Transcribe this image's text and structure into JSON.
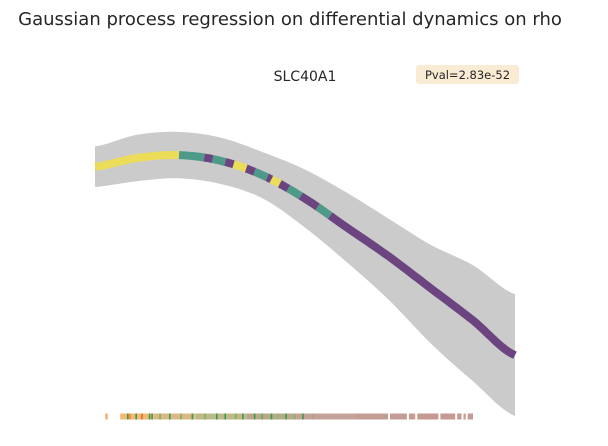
{
  "chart_data": {
    "type": "line",
    "title": "Gaussian process regression on differential dynamics on rho",
    "subtitle": "SLC40A1",
    "annotation": "Pval=2.83e-52",
    "xlabel": "",
    "ylabel": "",
    "grid": false,
    "axes_visible": false,
    "xlim": [
      0,
      1
    ],
    "ylim": [
      0,
      1
    ],
    "fit": {
      "x": [
        0.0,
        0.1,
        0.2,
        0.3,
        0.4,
        0.5,
        0.6,
        0.7,
        0.8,
        0.9,
        1.0
      ],
      "mean": [
        0.77,
        0.8,
        0.81,
        0.79,
        0.74,
        0.66,
        0.56,
        0.46,
        0.35,
        0.24,
        0.12
      ],
      "lower": [
        0.7,
        0.72,
        0.73,
        0.71,
        0.66,
        0.56,
        0.44,
        0.31,
        0.16,
        0.03,
        -0.09
      ],
      "upper": [
        0.84,
        0.88,
        0.89,
        0.87,
        0.82,
        0.76,
        0.68,
        0.59,
        0.5,
        0.43,
        0.33
      ],
      "band_color": "#cbcbcb"
    },
    "line_segments": [
      {
        "from": 0.0,
        "to": 0.2,
        "color": "#ebdd5a"
      },
      {
        "from": 0.2,
        "to": 0.26,
        "color": "#4e9a89"
      },
      {
        "from": 0.26,
        "to": 0.28,
        "color": "#6c4480"
      },
      {
        "from": 0.28,
        "to": 0.31,
        "color": "#4e9a89"
      },
      {
        "from": 0.31,
        "to": 0.33,
        "color": "#6c4480"
      },
      {
        "from": 0.33,
        "to": 0.36,
        "color": "#ebdd5a"
      },
      {
        "from": 0.36,
        "to": 0.38,
        "color": "#6c4480"
      },
      {
        "from": 0.38,
        "to": 0.41,
        "color": "#4e9a89"
      },
      {
        "from": 0.41,
        "to": 0.42,
        "color": "#6c4480"
      },
      {
        "from": 0.42,
        "to": 0.44,
        "color": "#ebdd5a"
      },
      {
        "from": 0.44,
        "to": 0.46,
        "color": "#6c4480"
      },
      {
        "from": 0.46,
        "to": 0.49,
        "color": "#4e9a89"
      },
      {
        "from": 0.49,
        "to": 0.53,
        "color": "#6c4480"
      },
      {
        "from": 0.53,
        "to": 0.56,
        "color": "#4e9a89"
      },
      {
        "from": 0.56,
        "to": 1.0,
        "color": "#6c4480"
      }
    ],
    "rug": {
      "y": -0.05,
      "segments": [
        {
          "from": 0.025,
          "to": 0.03,
          "color": "#f4a259"
        },
        {
          "from": 0.06,
          "to": 0.14,
          "color": "#f2b876"
        },
        {
          "from": 0.14,
          "to": 0.24,
          "color": "#d9b98a"
        },
        {
          "from": 0.24,
          "to": 0.36,
          "color": "#bdb98a"
        },
        {
          "from": 0.36,
          "to": 0.48,
          "color": "#b8a88c"
        },
        {
          "from": 0.48,
          "to": 0.62,
          "color": "#c4a29a"
        },
        {
          "from": 0.62,
          "to": 0.76,
          "color": "#c49c94"
        },
        {
          "from": 0.76,
          "to": 0.9,
          "color": "#c69a92"
        }
      ],
      "ticks": [
        {
          "x": 0.078,
          "color": "#3c9b4a"
        },
        {
          "x": 0.083,
          "color": "#f08c2e"
        },
        {
          "x": 0.098,
          "color": "#3c9b4a"
        },
        {
          "x": 0.112,
          "color": "#e0702a"
        },
        {
          "x": 0.13,
          "color": "#3c9b4a"
        },
        {
          "x": 0.136,
          "color": "#3c9b4a"
        },
        {
          "x": 0.155,
          "color": "#88b04b"
        },
        {
          "x": 0.178,
          "color": "#3c9b4a"
        },
        {
          "x": 0.205,
          "color": "#88b04b"
        },
        {
          "x": 0.232,
          "color": "#3c9b4a"
        },
        {
          "x": 0.262,
          "color": "#88b04b"
        },
        {
          "x": 0.29,
          "color": "#3c9b4a"
        },
        {
          "x": 0.31,
          "color": "#3c9b4a"
        },
        {
          "x": 0.335,
          "color": "#88b04b"
        },
        {
          "x": 0.352,
          "color": "#3c9b4a"
        },
        {
          "x": 0.38,
          "color": "#3c9b4a"
        },
        {
          "x": 0.398,
          "color": "#6aa84f"
        },
        {
          "x": 0.42,
          "color": "#3c9b4a"
        },
        {
          "x": 0.436,
          "color": "#8bbf6b"
        },
        {
          "x": 0.455,
          "color": "#3c9b4a"
        },
        {
          "x": 0.475,
          "color": "#9aa86b"
        },
        {
          "x": 0.495,
          "color": "#3c9b4a"
        },
        {
          "x": 0.52,
          "color": "#b0a078"
        }
      ],
      "gaps": [
        0.035,
        0.045,
        0.052,
        0.7,
        0.745,
        0.765,
        0.82,
        0.86,
        0.875,
        0.885
      ]
    }
  }
}
